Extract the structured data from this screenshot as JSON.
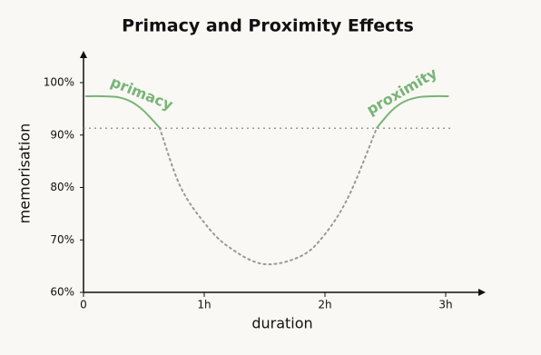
{
  "chart_data": {
    "type": "line",
    "title": "Primacy and Proximity Effects",
    "x_label": "duration",
    "y_label": "memorisation",
    "x": [
      0.02,
      0.15,
      0.29,
      0.4,
      0.5,
      0.63,
      0.8,
      1.0,
      1.2,
      1.49,
      1.8,
      2.0,
      2.2,
      2.43,
      2.55,
      2.65,
      2.77,
      2.9,
      3.02
    ],
    "series": [
      {
        "color": "#78b478",
        "style": "solid",
        "values": [
          97.4,
          97.4,
          97.2,
          96.3,
          94.6,
          91.4,
          null,
          null,
          null,
          null,
          null,
          null,
          null,
          91.4,
          94.6,
          96.3,
          97.2,
          97.4,
          97.4
        ]
      },
      {
        "color": "#999999",
        "style": "dotted",
        "values": [
          null,
          null,
          null,
          null,
          null,
          91.4,
          80.3,
          73.3,
          68.7,
          65.4,
          66.9,
          71.1,
          78.5,
          91.4,
          null,
          null,
          null,
          null,
          null
        ]
      }
    ],
    "reference_line": {
      "value": 91.3,
      "color": "#999999",
      "style": "dotted"
    },
    "annotations": [
      {
        "text": "primacy",
        "x": 0.48,
        "y": 97.8,
        "angle": 22,
        "color": "#78b478"
      },
      {
        "text": "proximity",
        "x": 2.64,
        "y": 98.2,
        "angle": -30,
        "color": "#78b478"
      }
    ],
    "xlim": [
      0,
      3.3
    ],
    "ylim": [
      60,
      105.4
    ],
    "xticks": [
      0,
      {
        "value": 1,
        "label": "1h"
      },
      {
        "value": 2,
        "label": "2h"
      },
      {
        "value": 3,
        "label": "3h"
      }
    ],
    "yticks": [
      {
        "value": 60,
        "label": "60%"
      },
      {
        "value": 70,
        "label": "70%"
      },
      {
        "value": 80,
        "label": "80%"
      },
      {
        "value": 90,
        "label": "90%"
      },
      {
        "value": 100,
        "label": "100%"
      }
    ]
  }
}
